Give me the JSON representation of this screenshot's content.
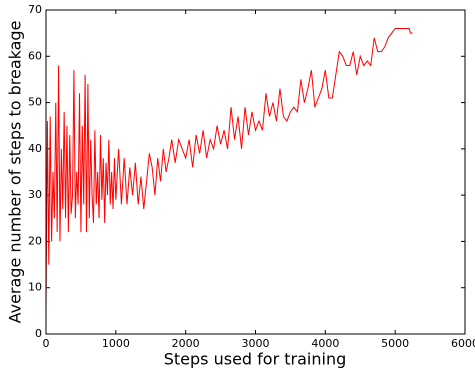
{
  "chart_data": {
    "type": "line",
    "x_label": "Steps used for training",
    "y_label": "Average number of steps to breakage",
    "xlim": [
      0,
      6000
    ],
    "xticks": [
      0,
      1000,
      2000,
      3000,
      4000,
      5000,
      6000
    ],
    "ylim": [
      0,
      70
    ],
    "yticks": [
      0,
      10,
      20,
      30,
      40,
      50,
      60,
      70
    ],
    "series": [
      {
        "color": "#ff0000",
        "x": [
          0,
          20,
          40,
          60,
          80,
          100,
          120,
          140,
          160,
          180,
          200,
          220,
          240,
          260,
          280,
          300,
          320,
          340,
          360,
          380,
          400,
          420,
          440,
          460,
          480,
          500,
          520,
          540,
          560,
          580,
          600,
          620,
          640,
          660,
          680,
          700,
          720,
          740,
          760,
          780,
          800,
          820,
          840,
          860,
          880,
          900,
          920,
          940,
          960,
          980,
          1000,
          1040,
          1080,
          1120,
          1160,
          1200,
          1240,
          1280,
          1320,
          1360,
          1400,
          1440,
          1480,
          1520,
          1560,
          1600,
          1640,
          1680,
          1720,
          1760,
          1800,
          1850,
          1900,
          1950,
          2000,
          2050,
          2100,
          2150,
          2200,
          2250,
          2300,
          2350,
          2400,
          2450,
          2500,
          2550,
          2600,
          2650,
          2700,
          2750,
          2800,
          2850,
          2900,
          2950,
          3000,
          3050,
          3100,
          3150,
          3200,
          3250,
          3300,
          3350,
          3400,
          3450,
          3500,
          3550,
          3600,
          3650,
          3700,
          3750,
          3800,
          3850,
          3900,
          3950,
          4000,
          4050,
          4100,
          4150,
          4200,
          4250,
          4300,
          4350,
          4400,
          4450,
          4500,
          4550,
          4600,
          4650,
          4700,
          4750,
          4800,
          4850,
          4900,
          5000,
          5200,
          5220,
          5250
        ],
        "values": [
          5,
          46,
          15,
          47,
          20,
          35,
          25,
          50,
          22,
          58,
          20,
          40,
          27,
          48,
          25,
          45,
          22,
          43,
          26,
          30,
          57,
          25,
          35,
          28,
          52,
          22,
          45,
          28,
          56,
          22,
          54,
          25,
          42,
          30,
          24,
          44,
          28,
          35,
          25,
          43,
          29,
          38,
          24,
          37,
          30,
          42,
          28,
          35,
          27,
          38,
          29,
          40,
          28,
          38,
          28,
          36,
          30,
          37,
          28,
          34,
          27,
          33,
          39,
          36,
          30,
          38,
          33,
          40,
          35,
          38,
          42,
          37,
          42,
          40,
          38,
          42,
          36,
          43,
          39,
          44,
          38,
          42,
          40,
          45,
          41,
          44,
          40,
          49,
          42,
          47,
          40,
          49,
          43,
          48,
          44,
          46,
          44,
          52,
          47,
          50,
          46,
          53,
          47,
          46,
          48,
          49,
          48,
          55,
          50,
          53,
          57,
          49,
          51,
          53,
          57,
          51,
          51,
          56,
          61,
          60,
          58,
          58,
          61,
          56,
          60,
          58,
          59,
          58,
          64,
          61,
          61,
          62,
          64,
          66,
          66,
          65,
          65
        ]
      }
    ]
  }
}
